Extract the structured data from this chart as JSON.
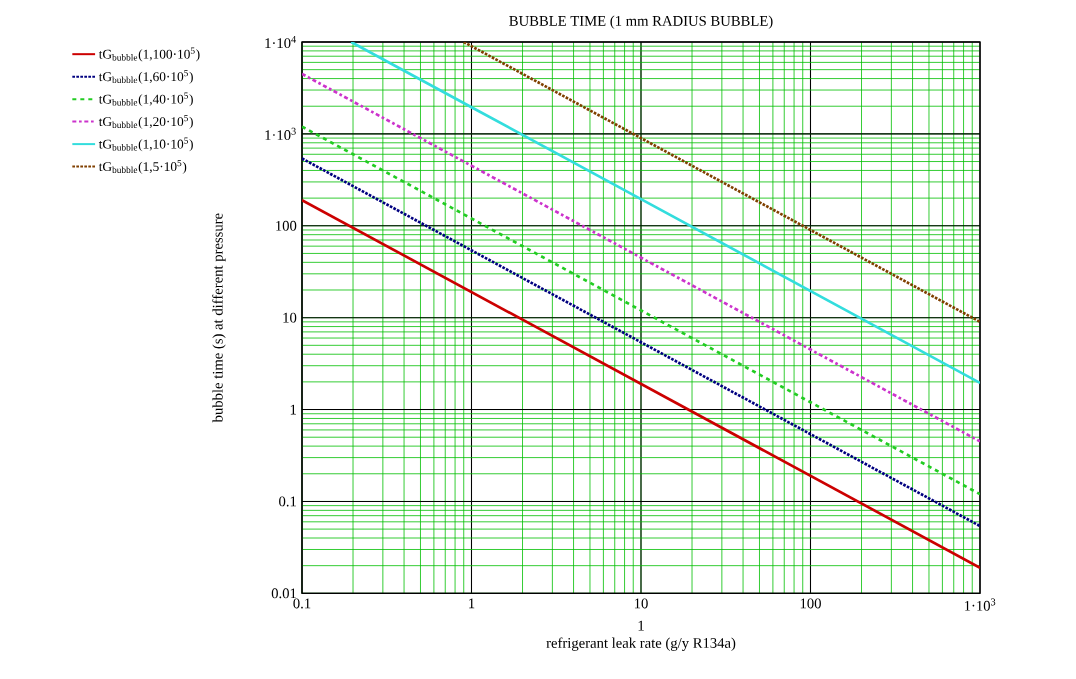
{
  "chart_data": {
    "type": "line",
    "title": "BUBBLE TIME (1 mm RADIUS BUBBLE)",
    "xlabel": "refrigerant leak rate (g/y R134a)",
    "ylabel": "bubble time (s) at different pressure",
    "annotations": [
      "1"
    ],
    "x": [
      0.1,
      1,
      10,
      100,
      1000
    ],
    "series": [
      {
        "name": "tG$_{bubble}$(1,100·10$^{5}$)",
        "color": "#cc0000",
        "line_style": "solid",
        "values": [
          190,
          19,
          1.9,
          0.19,
          0.019
        ]
      },
      {
        "name": "tG$_{bubble}$(1,60·10$^{5}$)",
        "color": "#000080",
        "line_style": "dotted",
        "values": [
          540,
          54,
          5.4,
          0.54,
          0.054
        ]
      },
      {
        "name": "tG$_{bubble}$(1,40·10$^{5}$)",
        "color": "#22cc22",
        "line_style": "dashed",
        "values": [
          1200,
          120,
          12,
          1.2,
          0.12
        ]
      },
      {
        "name": "tG$_{bubble}$(1,20·10$^{5}$)",
        "color": "#cc33cc",
        "line_style": "dashdot",
        "values": [
          4500,
          450,
          45,
          4.5,
          0.45
        ]
      },
      {
        "name": "tG$_{bubble}$(1,10·10$^{5}$)",
        "color": "#33dddd",
        "line_style": "solid",
        "x": [
          0.195,
          1,
          10,
          100,
          1000
        ],
        "values": [
          10000,
          1950,
          195,
          19.5,
          1.95
        ]
      },
      {
        "name": "tG$_{bubble}$(1,5·10$^{5}$)",
        "color": "#804000",
        "line_style": "dotted",
        "x": [
          0.9,
          1,
          10,
          100,
          1000
        ],
        "values": [
          10000,
          9000,
          900,
          90,
          9
        ]
      }
    ],
    "log": "xy",
    "grid": true,
    "legend": "left",
    "marker": "none",
    "xlim": [
      0.1,
      1000
    ],
    "ylim": [
      0.01,
      10000
    ],
    "xticks": [
      0.1,
      1,
      10,
      100,
      {
        "value": 1000,
        "label": "1·10$^{3}$"
      }
    ],
    "yticks": [
      0.01,
      0.1,
      1,
      10,
      100,
      {
        "value": 1000,
        "label": "1·10$^{3}$"
      },
      {
        "value": 10000,
        "label": "1·10$^{4}$"
      }
    ]
  }
}
